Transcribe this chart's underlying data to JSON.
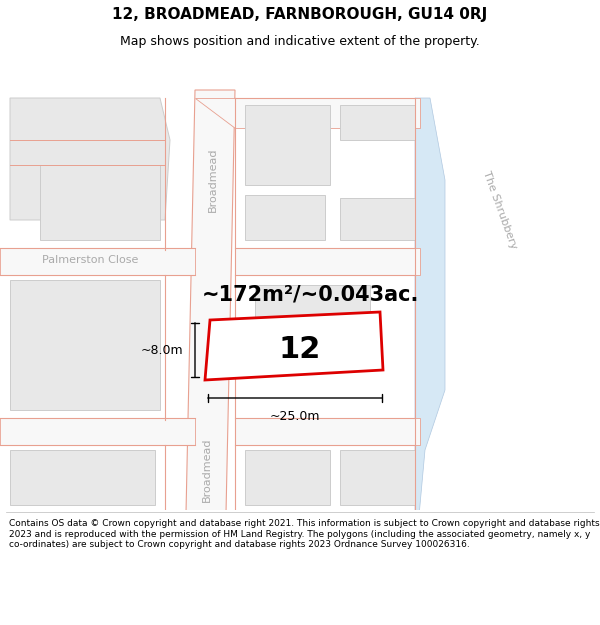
{
  "title": "12, BROADMEAD, FARNBOROUGH, GU14 0RJ",
  "subtitle": "Map shows position and indicative extent of the property.",
  "footer": "Contains OS data © Crown copyright and database right 2021. This information is subject to Crown copyright and database rights 2023 and is reproduced with the permission of HM Land Registry. The polygons (including the associated geometry, namely x, y co-ordinates) are subject to Crown copyright and database rights 2023 Ordnance Survey 100026316.",
  "area_text": "~172m²/~0.043ac.",
  "property_number": "12",
  "dim_width": "~25.0m",
  "dim_height": "~8.0m",
  "map_bg": "#ffffff",
  "block_fill": "#e8e8e8",
  "block_edge": "#cccccc",
  "road_fill": "#ffffff",
  "road_edge": "#e8a090",
  "water_color": "#d6e8f5",
  "property_fill": "#ffffff",
  "property_edge": "#dd0000",
  "road_label_color": "#aaaaaa",
  "palmerston_color": "#aaaaaa",
  "shrub_color": "#aaaaaa",
  "text_color": "#000000",
  "title_fontsize": 11,
  "subtitle_fontsize": 9,
  "footer_fontsize": 6.5,
  "dim_fontsize": 9,
  "area_fontsize": 15,
  "prop_num_fontsize": 22,
  "road_label_fontsize": 8
}
